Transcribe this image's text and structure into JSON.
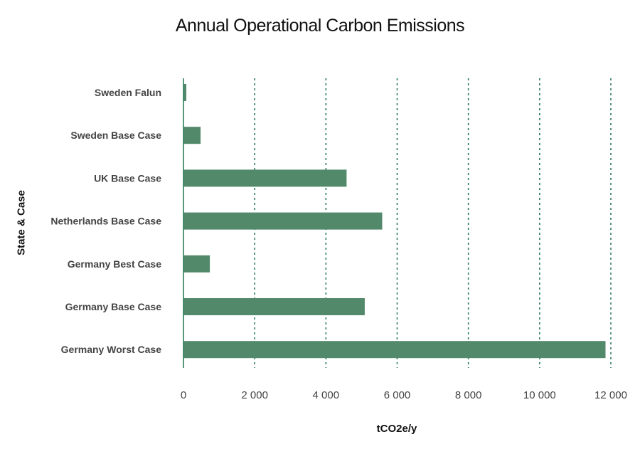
{
  "chart_data": {
    "type": "bar",
    "orientation": "horizontal",
    "title": "Annual Operational Carbon Emissions",
    "xlabel": "tCO2e/y",
    "ylabel": "State & Case",
    "categories": [
      "Sweden Falun",
      "Sweden Base Case",
      "UK Base Case",
      "Netherlands Base Case",
      "Germany Best Case",
      "Germany Base Case",
      "Germany Worst Case"
    ],
    "values": [
      80,
      480,
      4580,
      5580,
      740,
      5090,
      11850
    ],
    "xlim": [
      0,
      12000
    ],
    "xticks": [
      0,
      2000,
      4000,
      6000,
      8000,
      10000,
      12000
    ],
    "xtick_labels": [
      "0",
      "2 000",
      "4 000",
      "6 000",
      "8 000",
      "10 000",
      "12 000"
    ],
    "grid": "vertical dashed",
    "bar_color": "#52896b",
    "grid_color": "#2e7d5b"
  }
}
